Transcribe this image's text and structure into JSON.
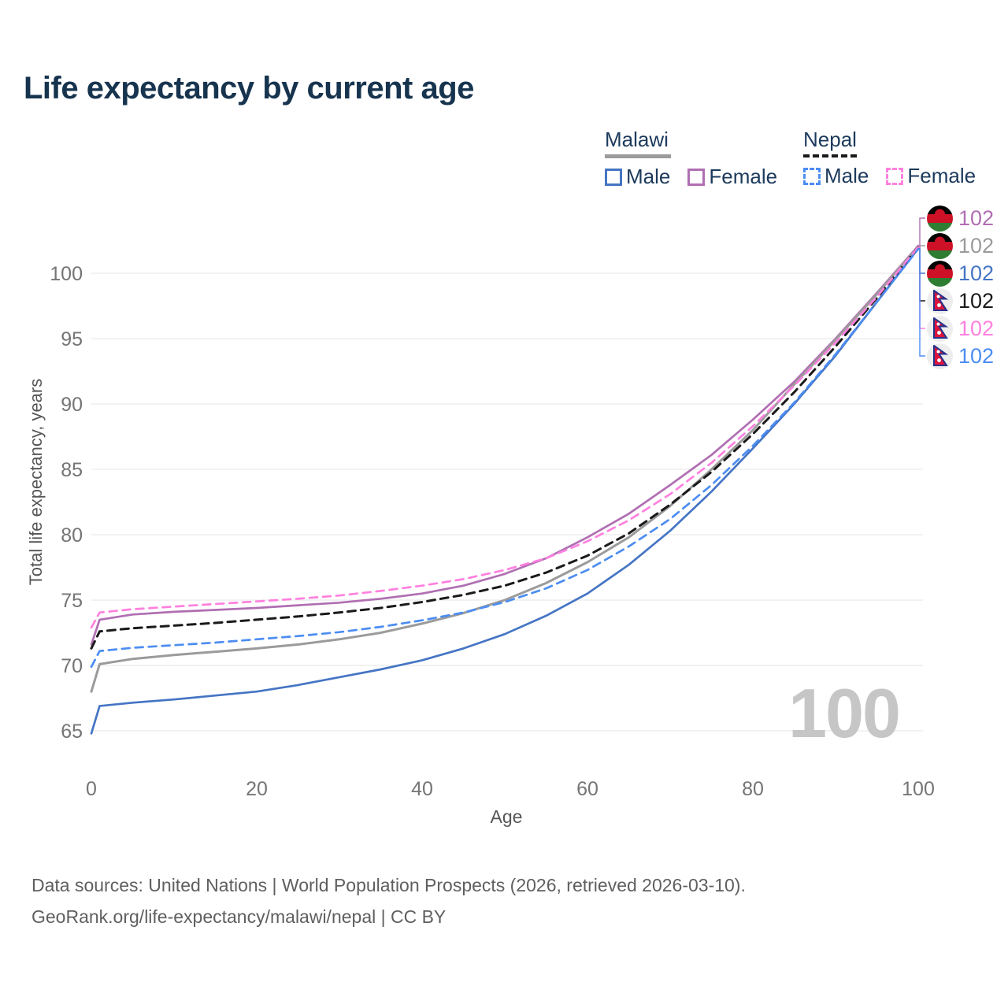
{
  "title": "Life expectancy by current age",
  "watermark": "100",
  "colors": {
    "title": "#17344f",
    "legend_text": "#1c3a5c",
    "grid": "#e9e9e9",
    "tick": "#757575",
    "axis_title": "#565656",
    "watermark": "#c6c6c6",
    "malawi_male": "#4575c4",
    "malawi_female": "#b06fb2",
    "malawi_total": "#9b9b9b",
    "nepal_male": "#4c8df2",
    "nepal_female": "#ff80df",
    "nepal_total": "#1a1a1a"
  },
  "legend": {
    "malawi": {
      "label": "Malawi",
      "male": "Male",
      "female": "Female"
    },
    "nepal": {
      "label": "Nepal",
      "male": "Male",
      "female": "Female"
    }
  },
  "chart_data": {
    "type": "line",
    "title": "Life expectancy by current age",
    "xlabel": "Age",
    "ylabel": "Total life expectancy, years",
    "x_ticks": [
      0,
      20,
      40,
      60,
      80,
      100
    ],
    "y_ticks": [
      65,
      70,
      75,
      80,
      85,
      90,
      95,
      100
    ],
    "xlim": [
      0,
      100
    ],
    "ylim": [
      62.8,
      103.5
    ],
    "grid": "horizontal",
    "legend_position": "top-right",
    "x": [
      0,
      1,
      5,
      10,
      15,
      20,
      25,
      30,
      35,
      40,
      45,
      50,
      55,
      60,
      65,
      70,
      75,
      80,
      85,
      90,
      95,
      100
    ],
    "series": [
      {
        "id": "malawi-female",
        "country": "Malawi",
        "sex": "Female",
        "style": "solid",
        "color": "#b06fb2",
        "values": [
          71.6,
          73.5,
          73.9,
          74.1,
          74.25,
          74.4,
          74.6,
          74.8,
          75.1,
          75.5,
          76.1,
          77.0,
          78.2,
          79.8,
          81.6,
          83.8,
          86.1,
          88.8,
          91.7,
          95.0,
          98.5,
          102.1
        ]
      },
      {
        "id": "malawi-total",
        "country": "Malawi",
        "sex": "Both",
        "style": "solid",
        "color": "#9b9b9b",
        "values": [
          68.0,
          70.1,
          70.5,
          70.8,
          71.05,
          71.3,
          71.6,
          72.0,
          72.5,
          73.2,
          74.0,
          75.0,
          76.3,
          77.9,
          79.8,
          82.2,
          85.0,
          88.0,
          91.5,
          94.9,
          98.4,
          102.05
        ]
      },
      {
        "id": "malawi-male",
        "country": "Malawi",
        "sex": "Male",
        "style": "solid",
        "color": "#4575c4",
        "values": [
          64.8,
          66.9,
          67.15,
          67.4,
          67.7,
          68.0,
          68.5,
          69.1,
          69.7,
          70.4,
          71.3,
          72.4,
          73.8,
          75.5,
          77.7,
          80.3,
          83.3,
          86.6,
          90.0,
          93.7,
          97.8,
          101.9
        ]
      },
      {
        "id": "nepal-total",
        "country": "Nepal",
        "sex": "Both",
        "style": "dashed",
        "color": "#1a1a1a",
        "values": [
          71.3,
          72.6,
          72.85,
          73.05,
          73.25,
          73.5,
          73.75,
          74.05,
          74.4,
          74.85,
          75.4,
          76.1,
          77.1,
          78.4,
          80.1,
          82.3,
          84.8,
          87.7,
          90.9,
          94.4,
          98.1,
          102.0
        ]
      },
      {
        "id": "nepal-female",
        "country": "Nepal",
        "sex": "Female",
        "style": "dashed",
        "color": "#ff80df",
        "values": [
          72.9,
          74.05,
          74.3,
          74.5,
          74.7,
          74.9,
          75.1,
          75.35,
          75.7,
          76.1,
          76.6,
          77.3,
          78.2,
          79.5,
          81.1,
          83.1,
          85.5,
          88.3,
          91.4,
          94.7,
          98.2,
          102.0
        ]
      },
      {
        "id": "nepal-male",
        "country": "Nepal",
        "sex": "Male",
        "style": "dashed",
        "color": "#4c8df2",
        "values": [
          69.9,
          71.1,
          71.35,
          71.55,
          71.75,
          72.0,
          72.25,
          72.55,
          72.95,
          73.45,
          74.05,
          74.85,
          75.9,
          77.3,
          79.1,
          81.2,
          83.8,
          86.8,
          90.1,
          93.8,
          97.8,
          101.85
        ]
      }
    ]
  },
  "end_labels": [
    {
      "flag": "malawi",
      "value": "102",
      "color": "#b06fb2"
    },
    {
      "flag": "malawi",
      "value": "102",
      "color": "#9b9b9b"
    },
    {
      "flag": "malawi",
      "value": "102",
      "color": "#4575c4"
    },
    {
      "flag": "nepal",
      "value": "102",
      "color": "#1a1a1a"
    },
    {
      "flag": "nepal",
      "value": "102",
      "color": "#ff80df"
    },
    {
      "flag": "nepal",
      "value": "102",
      "color": "#4c8df2"
    }
  ],
  "footer": {
    "line1": "Data sources: United Nations | World Population Prospects (2026, retrieved 2026-03-10).",
    "line2": "GeoRank.org/life-expectancy/malawi/nepal | CC BY"
  }
}
